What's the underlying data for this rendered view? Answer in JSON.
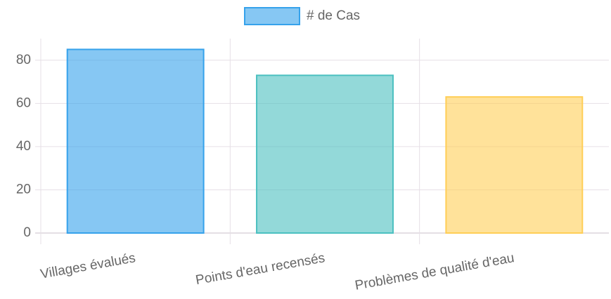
{
  "chart_data": {
    "type": "bar",
    "legend": "# de Cas",
    "categories": [
      "Villages évalués",
      "Points d'eau recensés",
      "Problèmes de qualité d'eau"
    ],
    "values": [
      85,
      73,
      63
    ],
    "colors": [
      "rgba(54,162,235,0.6)",
      "rgba(75,192,192,0.6)",
      "rgba(255,206,86,0.6)"
    ],
    "border_colors": [
      "#36a2eb",
      "#4bc0c0",
      "#ffce56"
    ],
    "ylim": [
      0,
      90
    ],
    "yticks": [
      0,
      20,
      40,
      60,
      80
    ],
    "grid": true
  }
}
